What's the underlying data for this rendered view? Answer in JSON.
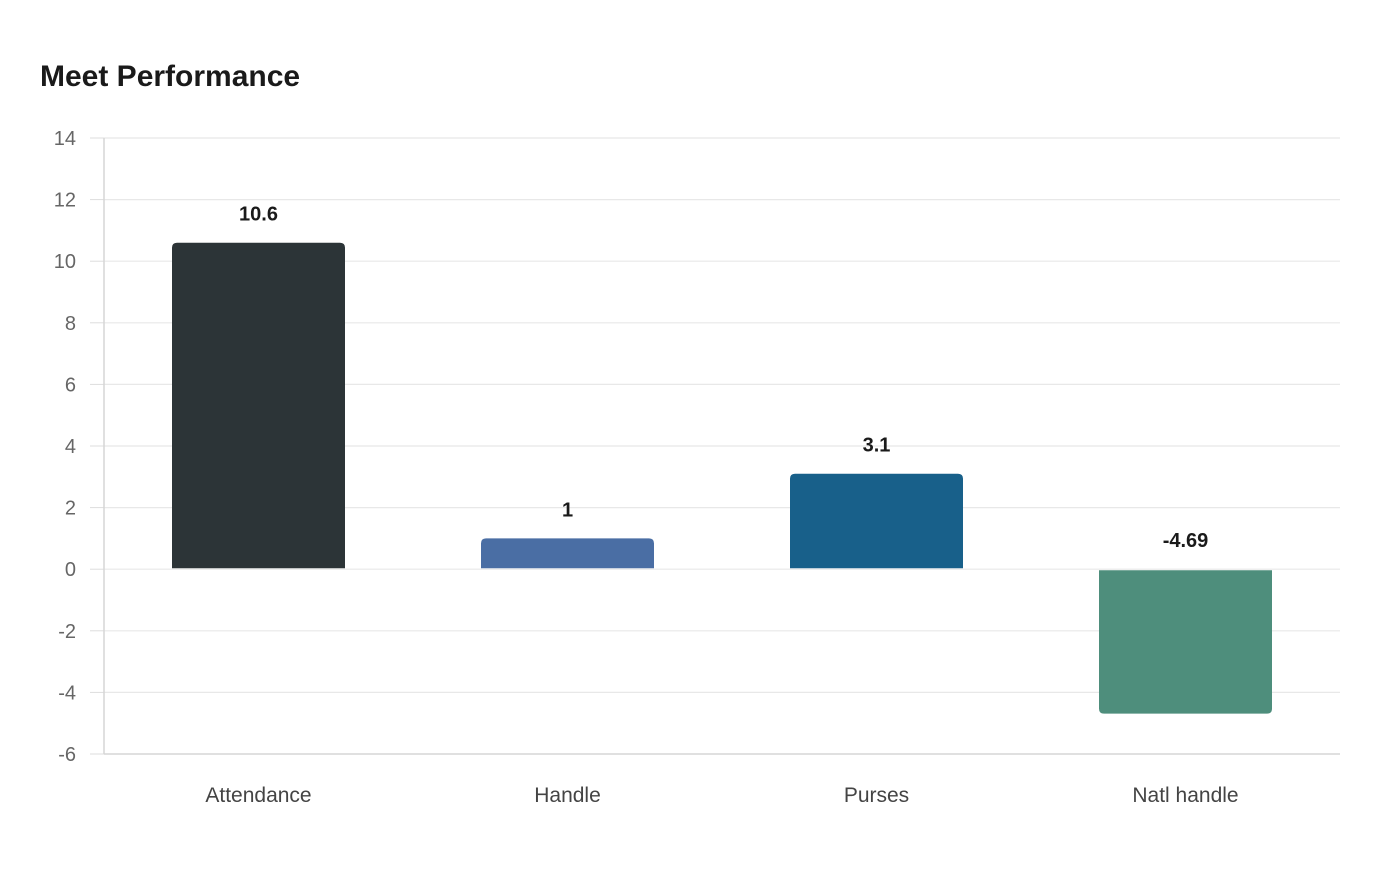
{
  "chart_data": {
    "type": "bar",
    "title": "Meet Performance",
    "xlabel": "",
    "ylabel": "",
    "categories": [
      "Attendance",
      "Handle",
      "Purses",
      "Natl handle"
    ],
    "values": [
      10.6,
      1,
      3.1,
      -4.69
    ],
    "value_labels": [
      "10.6",
      "1",
      "3.1",
      "-4.69"
    ],
    "colors": [
      "#2c3437",
      "#4a6ea4",
      "#18608a",
      "#4e8e7c"
    ],
    "ylim": [
      -6,
      14
    ],
    "yticks": [
      -6,
      -4,
      -2,
      0,
      2,
      4,
      6,
      8,
      10,
      12,
      14
    ],
    "grid": true,
    "legend": "none"
  }
}
